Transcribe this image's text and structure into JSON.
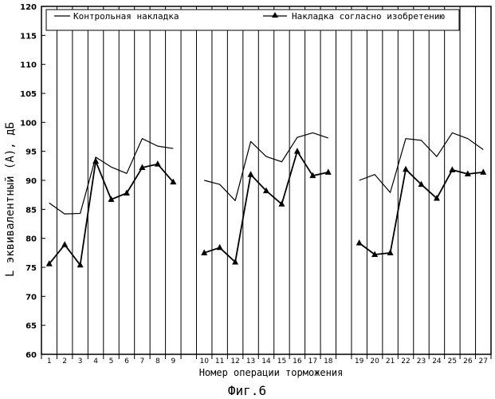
{
  "chart_data": {
    "type": "line",
    "xlabel": "Номер операции торможения",
    "ylabel": "L эквивалентный (А), дБ",
    "caption": "Фиг.6",
    "ylim": [
      60,
      120
    ],
    "y_ticks": [
      60,
      65,
      70,
      75,
      80,
      85,
      90,
      95,
      100,
      105,
      110,
      115,
      120
    ],
    "categories": [
      "1",
      "2",
      "3",
      "4",
      "5",
      "6",
      "7",
      "8",
      "9",
      "",
      "10",
      "11",
      "12",
      "13",
      "14",
      "15",
      "16",
      "17",
      "18",
      "",
      "19",
      "20",
      "21",
      "22",
      "23",
      "24",
      "25",
      "26",
      "27"
    ],
    "grid": "vertical",
    "legend_position": "top",
    "series": [
      {
        "name": "Контрольная накладка",
        "marker": "none",
        "color": "#000000",
        "segments": [
          {
            "x": [
              1,
              2,
              3,
              4,
              5,
              6,
              7,
              8,
              9
            ],
            "y": [
              86.1,
              84.2,
              84.3,
              94.0,
              92.3,
              91.2,
              97.2,
              95.9,
              95.5
            ]
          },
          {
            "x": [
              10,
              11,
              12,
              13,
              14,
              15,
              16,
              17,
              18
            ],
            "y": [
              90.0,
              89.3,
              86.5,
              96.7,
              94.1,
              93.2,
              97.4,
              98.2,
              97.3
            ]
          },
          {
            "x": [
              19,
              20,
              21,
              22,
              23,
              24,
              25,
              26,
              27
            ],
            "y": [
              90.0,
              91.0,
              87.9,
              97.2,
              96.9,
              94.1,
              98.2,
              97.2,
              95.3
            ]
          }
        ]
      },
      {
        "name": "Накладка согласно изобретению",
        "marker": "triangle",
        "color": "#000000",
        "segments": [
          {
            "x": [
              1,
              2,
              3,
              4,
              5,
              6,
              7,
              8,
              9
            ],
            "y": [
              75.6,
              78.9,
              75.4,
              93.3,
              86.7,
              87.8,
              92.2,
              92.8,
              89.7
            ]
          },
          {
            "x": [
              10,
              11,
              12,
              13,
              14,
              15,
              16,
              17,
              18
            ],
            "y": [
              77.5,
              78.4,
              75.9,
              91.0,
              88.2,
              85.9,
              95.0,
              90.8,
              91.4
            ]
          },
          {
            "x": [
              19,
              20,
              21,
              22,
              23,
              24,
              25,
              26,
              27
            ],
            "y": [
              79.2,
              77.2,
              77.5,
              91.9,
              89.3,
              86.9,
              91.8,
              91.1,
              91.4
            ]
          }
        ]
      }
    ]
  }
}
